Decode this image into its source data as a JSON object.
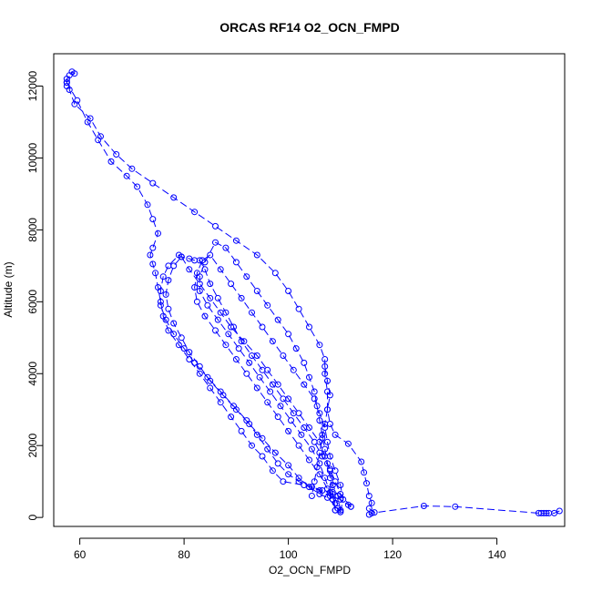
{
  "chart_data": {
    "type": "scatter",
    "title": "ORCAS RF14 O2_OCN_FMPD",
    "xlabel": "O2_OCN_FMPD",
    "ylabel": "Altitude (m)",
    "xlim": [
      55,
      153
    ],
    "ylim": [
      -250,
      12900
    ],
    "xticks": [
      60,
      80,
      100,
      120,
      140
    ],
    "yticks": [
      0,
      2000,
      4000,
      6000,
      8000,
      10000,
      12000
    ],
    "grid": false,
    "color": "#0000ff",
    "marker": "open-circle",
    "series": [
      {
        "points": [
          [
            152,
            180
          ],
          [
            151,
            120
          ],
          [
            150,
            120
          ],
          [
            149.5,
            120
          ],
          [
            149,
            120
          ],
          [
            148.5,
            120
          ],
          [
            148,
            120
          ],
          [
            132,
            300
          ],
          [
            126,
            320
          ],
          [
            116,
            120
          ],
          [
            115.5,
            80
          ],
          [
            116.5,
            140
          ],
          [
            115.5,
            250
          ],
          [
            116,
            400
          ],
          [
            115.5,
            600
          ],
          [
            115,
            950
          ],
          [
            114.5,
            1250
          ],
          [
            114,
            1550
          ],
          [
            111.5,
            2050
          ],
          [
            109,
            2300
          ],
          [
            108,
            2600
          ],
          [
            107.5,
            3000
          ],
          [
            107.5,
            3500
          ],
          [
            107,
            4000
          ],
          [
            107,
            4400
          ],
          [
            106,
            4800
          ],
          [
            104,
            5300
          ],
          [
            102,
            5800
          ],
          [
            100,
            6300
          ],
          [
            97.5,
            6800
          ],
          [
            94,
            7300
          ],
          [
            90,
            7700
          ],
          [
            86,
            8100
          ],
          [
            82,
            8500
          ],
          [
            78,
            8900
          ],
          [
            74,
            9300
          ],
          [
            70,
            9700
          ],
          [
            67,
            10100
          ],
          [
            64,
            10600
          ],
          [
            62,
            11100
          ],
          [
            59,
            11500
          ],
          [
            58,
            11900
          ],
          [
            58,
            12300
          ],
          [
            58.5,
            12400
          ],
          [
            59,
            12350
          ],
          [
            57.5,
            12200
          ],
          [
            57.5,
            12100
          ],
          [
            57.5,
            12000
          ]
        ]
      },
      {
        "points": [
          [
            57.5,
            12100
          ],
          [
            59.5,
            11600
          ],
          [
            61.5,
            11000
          ],
          [
            63.5,
            10500
          ],
          [
            66,
            9900
          ],
          [
            69,
            9500
          ],
          [
            71,
            9200
          ],
          [
            73,
            8700
          ],
          [
            74,
            8300
          ],
          [
            75,
            7900
          ],
          [
            74,
            7500
          ],
          [
            73.5,
            7300
          ],
          [
            74,
            7050
          ],
          [
            74.5,
            6800
          ],
          [
            75,
            6400
          ],
          [
            75.5,
            6000
          ],
          [
            76,
            5600
          ],
          [
            77,
            5200
          ],
          [
            79,
            4800
          ],
          [
            81,
            4400
          ],
          [
            83,
            4000
          ],
          [
            85,
            3600
          ],
          [
            87,
            3200
          ],
          [
            89,
            2800
          ],
          [
            91,
            2400
          ],
          [
            93,
            2000
          ],
          [
            95,
            1700
          ],
          [
            97,
            1300
          ],
          [
            99,
            1000
          ],
          [
            103,
            900
          ],
          [
            106,
            750
          ],
          [
            108,
            600
          ],
          [
            110,
            500
          ],
          [
            111.5,
            350
          ],
          [
            112,
            300
          ]
        ]
      },
      {
        "points": [
          [
            112,
            300
          ],
          [
            110,
            650
          ],
          [
            109,
            1000
          ],
          [
            108,
            1350
          ],
          [
            106.5,
            1700
          ],
          [
            105,
            2100
          ],
          [
            103,
            2500
          ],
          [
            101,
            2900
          ],
          [
            99,
            3300
          ],
          [
            97,
            3700
          ],
          [
            95,
            4100
          ],
          [
            93,
            4500
          ],
          [
            91,
            4900
          ],
          [
            89.5,
            5300
          ],
          [
            88,
            5700
          ],
          [
            86.5,
            6100
          ],
          [
            85,
            6500
          ],
          [
            84,
            6900
          ],
          [
            83,
            7150
          ],
          [
            82,
            7150
          ],
          [
            81,
            7200
          ],
          [
            79.5,
            7250
          ],
          [
            79,
            7300
          ],
          [
            77,
            7000
          ],
          [
            76,
            6700
          ],
          [
            75.5,
            6300
          ],
          [
            75.5,
            5900
          ],
          [
            76.5,
            5500
          ],
          [
            78,
            5100
          ],
          [
            80,
            4700
          ],
          [
            82,
            4300
          ],
          [
            84.5,
            3900
          ],
          [
            87,
            3500
          ],
          [
            89.5,
            3100
          ],
          [
            92,
            2700
          ],
          [
            94,
            2300
          ],
          [
            96,
            1900
          ],
          [
            98,
            1500
          ],
          [
            100,
            1200
          ],
          [
            102,
            1000
          ],
          [
            104.5,
            850
          ],
          [
            106.5,
            750
          ],
          [
            108.5,
            650
          ],
          [
            110,
            200
          ]
        ]
      },
      {
        "points": [
          [
            110,
            200
          ],
          [
            109.5,
            600
          ],
          [
            108.5,
            900
          ],
          [
            108,
            1300
          ],
          [
            107,
            1700
          ],
          [
            106,
            2100
          ],
          [
            104,
            2500
          ],
          [
            102,
            2900
          ],
          [
            100,
            3300
          ],
          [
            98,
            3700
          ],
          [
            96,
            4100
          ],
          [
            94,
            4500
          ],
          [
            91.5,
            4900
          ],
          [
            89,
            5300
          ],
          [
            87,
            5700
          ],
          [
            85,
            6100
          ],
          [
            83,
            6500
          ],
          [
            81,
            6900
          ],
          [
            79.5,
            7250
          ],
          [
            78,
            7000
          ],
          [
            77,
            6600
          ],
          [
            76.5,
            6200
          ],
          [
            77,
            5800
          ],
          [
            78,
            5400
          ],
          [
            79.5,
            5000
          ],
          [
            81,
            4600
          ],
          [
            83,
            4200
          ],
          [
            85,
            3800
          ],
          [
            87.5,
            3400
          ],
          [
            90,
            3000
          ],
          [
            92.5,
            2600
          ],
          [
            95,
            2200
          ],
          [
            97.5,
            1800
          ],
          [
            100,
            1450
          ],
          [
            102,
            1100
          ],
          [
            104,
            850
          ],
          [
            106,
            650
          ],
          [
            107.5,
            550
          ],
          [
            109.5,
            250
          ],
          [
            110,
            150
          ]
        ]
      },
      {
        "points": [
          [
            110,
            150
          ],
          [
            110.5,
            500
          ],
          [
            110,
            900
          ],
          [
            109,
            1300
          ],
          [
            108,
            1700
          ],
          [
            107.5,
            2100
          ],
          [
            107,
            2500
          ],
          [
            106,
            2900
          ],
          [
            105,
            3300
          ],
          [
            103,
            3700
          ],
          [
            101,
            4100
          ],
          [
            99,
            4500
          ],
          [
            97,
            4900
          ],
          [
            95,
            5300
          ],
          [
            93,
            5700
          ],
          [
            91,
            6100
          ],
          [
            89,
            6500
          ],
          [
            87,
            6900
          ],
          [
            85,
            7300
          ],
          [
            83.5,
            7150
          ],
          [
            82.5,
            6800
          ],
          [
            82,
            6400
          ],
          [
            82.5,
            6000
          ],
          [
            84,
            5600
          ],
          [
            86,
            5200
          ],
          [
            88,
            4800
          ],
          [
            90,
            4400
          ],
          [
            92,
            4000
          ],
          [
            94,
            3600
          ],
          [
            96,
            3200
          ],
          [
            98,
            2800
          ],
          [
            100,
            2400
          ],
          [
            102,
            2000
          ],
          [
            104,
            1600
          ],
          [
            106,
            1200
          ],
          [
            107.5,
            800
          ],
          [
            108.5,
            500
          ],
          [
            109,
            200
          ]
        ]
      },
      {
        "points": [
          [
            109,
            200
          ],
          [
            108.5,
            700
          ],
          [
            108,
            1100
          ],
          [
            107.5,
            1500
          ],
          [
            107,
            1900
          ],
          [
            106.5,
            2300
          ],
          [
            106,
            2700
          ],
          [
            105.5,
            3100
          ],
          [
            105,
            3500
          ],
          [
            104,
            3900
          ],
          [
            103,
            4300
          ],
          [
            101.5,
            4700
          ],
          [
            100,
            5100
          ],
          [
            98,
            5500
          ],
          [
            96,
            5900
          ],
          [
            94,
            6300
          ],
          [
            92,
            6700
          ],
          [
            90,
            7100
          ],
          [
            88,
            7500
          ],
          [
            86,
            7650
          ],
          [
            84,
            7100
          ],
          [
            83,
            6700
          ],
          [
            83,
            6300
          ],
          [
            84.5,
            5900
          ],
          [
            86.5,
            5500
          ],
          [
            88.5,
            5100
          ],
          [
            90.5,
            4700
          ],
          [
            92.5,
            4300
          ],
          [
            94.5,
            3900
          ],
          [
            96.5,
            3500
          ],
          [
            98.5,
            3100
          ],
          [
            100.5,
            2700
          ],
          [
            102.5,
            2300
          ],
          [
            104.5,
            1900
          ],
          [
            106,
            1500
          ],
          [
            107,
            1100
          ],
          [
            108,
            700
          ],
          [
            109,
            400
          ]
        ]
      },
      {
        "points": [
          [
            107,
            4200
          ],
          [
            107.5,
            3800
          ],
          [
            108,
            3400
          ],
          [
            107.5,
            3000
          ],
          [
            107,
            2600
          ],
          [
            106.5,
            2200
          ],
          [
            106,
            1800
          ],
          [
            105.5,
            1400
          ],
          [
            105,
            1000
          ],
          [
            104.5,
            600
          ]
        ]
      }
    ]
  }
}
